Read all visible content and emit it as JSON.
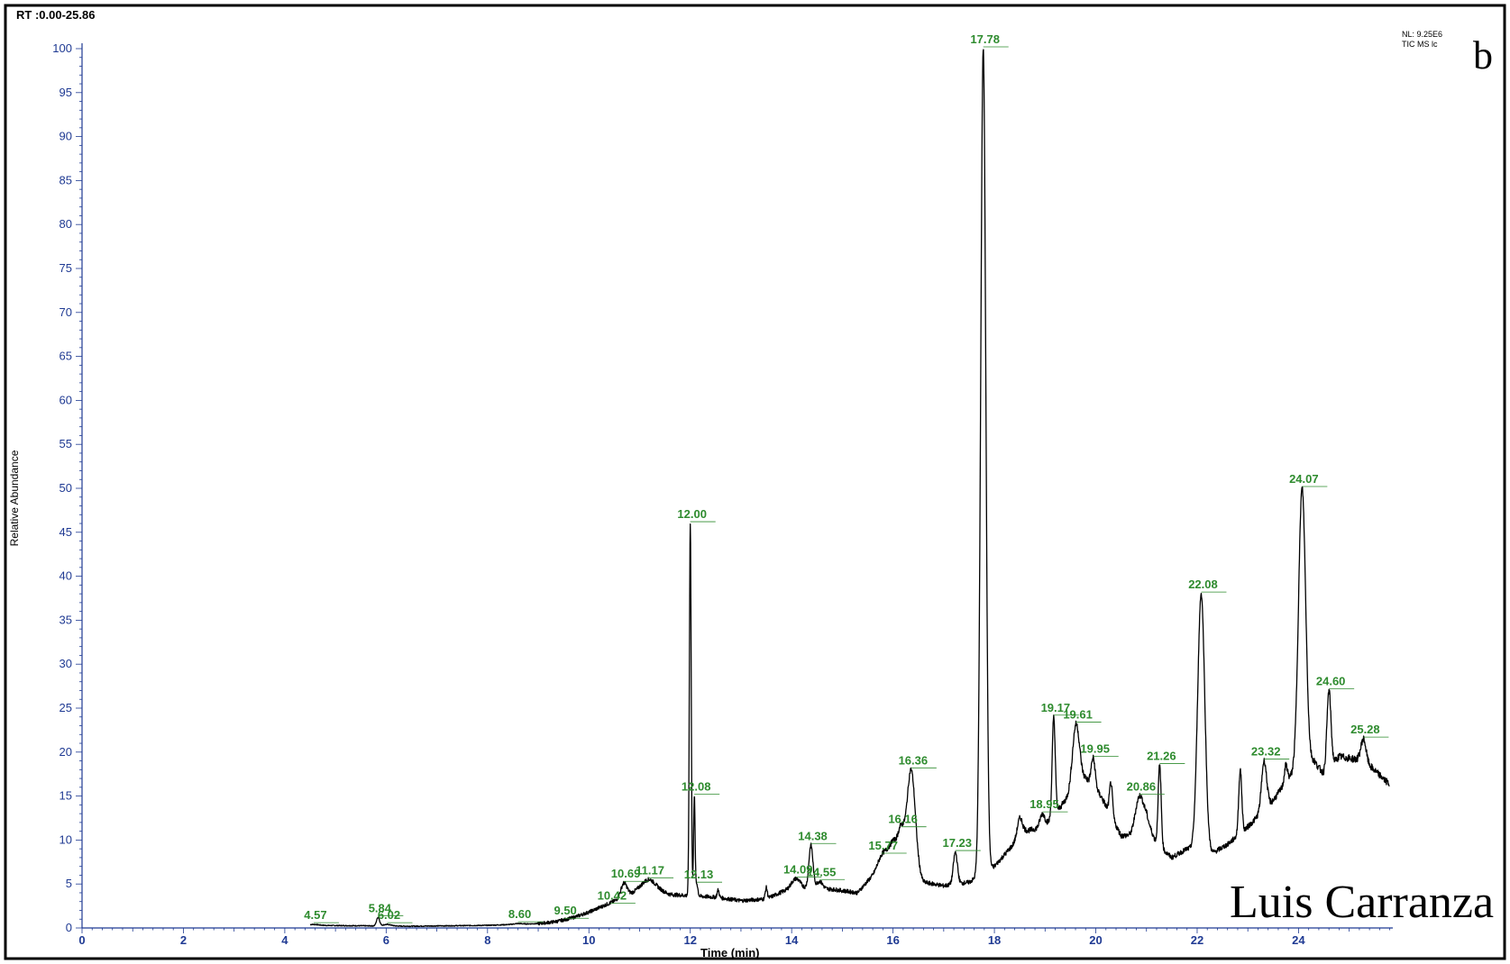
{
  "header": {
    "range": "RT :0.00-25.86",
    "nl": "NL: 9.25E6",
    "scan": "TIC  MS  lc",
    "panel_letter": "b",
    "author": "Luis Carranza"
  },
  "colors": {
    "trace": "#000000",
    "peak_label": "#2e8b2e",
    "axis": "#1f3a93",
    "border": "#000000"
  },
  "chart_data": {
    "type": "line",
    "xlabel": "Time (min)",
    "ylabel": "Relative Abundance",
    "xlim": [
      0,
      25.86
    ],
    "ylim": [
      0,
      100
    ],
    "x_ticks": [
      0,
      2,
      4,
      6,
      8,
      10,
      12,
      14,
      16,
      18,
      20,
      22,
      24
    ],
    "y_ticks": [
      0,
      5,
      10,
      15,
      20,
      25,
      30,
      35,
      40,
      45,
      50,
      55,
      60,
      65,
      70,
      75,
      80,
      85,
      90,
      95,
      100
    ],
    "trace_start": 4.5,
    "trace_end": 25.8,
    "baseline": [
      [
        4.5,
        0.3
      ],
      [
        6.5,
        0.2
      ],
      [
        8.0,
        0.3
      ],
      [
        9.0,
        0.5
      ],
      [
        9.5,
        0.8
      ],
      [
        10.0,
        1.8
      ],
      [
        10.4,
        2.8
      ],
      [
        10.8,
        3.8
      ],
      [
        11.2,
        4.6
      ],
      [
        11.6,
        3.8
      ],
      [
        12.5,
        3.5
      ],
      [
        13.0,
        3.1
      ],
      [
        13.5,
        3.3
      ],
      [
        14.0,
        4.6
      ],
      [
        14.8,
        4.4
      ],
      [
        15.3,
        4.0
      ],
      [
        15.6,
        6.0
      ],
      [
        16.0,
        10.0
      ],
      [
        16.6,
        5.2
      ],
      [
        17.0,
        4.8
      ],
      [
        17.5,
        5.2
      ],
      [
        18.0,
        7.0
      ],
      [
        18.3,
        9.0
      ],
      [
        18.6,
        11.0
      ],
      [
        19.0,
        11.5
      ],
      [
        19.4,
        14.5
      ],
      [
        19.8,
        17.0
      ],
      [
        20.1,
        15.0
      ],
      [
        20.5,
        10.5
      ],
      [
        20.7,
        10.5
      ],
      [
        21.0,
        12.5
      ],
      [
        21.2,
        9.5
      ],
      [
        21.5,
        8.0
      ],
      [
        21.8,
        9.0
      ],
      [
        22.3,
        8.5
      ],
      [
        22.6,
        9.5
      ],
      [
        23.0,
        11.5
      ],
      [
        23.5,
        14.5
      ],
      [
        23.8,
        17.0
      ],
      [
        24.3,
        19.0
      ],
      [
        24.5,
        17.5
      ],
      [
        24.8,
        19.5
      ],
      [
        25.3,
        19.0
      ],
      [
        25.8,
        16.3
      ]
    ],
    "peaks": [
      {
        "label": "4.57",
        "x": 4.57,
        "y": 0.4,
        "w": 0.1
      },
      {
        "label": "5.84",
        "x": 5.84,
        "y": 1.2,
        "w": 0.03
      },
      {
        "label": "6.02",
        "x": 6.02,
        "y": 0.4,
        "w": 0.08
      },
      {
        "label": "8.60",
        "x": 8.6,
        "y": 0.5,
        "w": 0.08
      },
      {
        "label": "9.50",
        "x": 9.5,
        "y": 0.9,
        "w": 0.08
      },
      {
        "label": "10.42",
        "x": 10.42,
        "y": 2.6,
        "w": 0.08
      },
      {
        "label": "10.69",
        "x": 10.69,
        "y": 5.1,
        "w": 0.06
      },
      {
        "label": "11.17",
        "x": 11.17,
        "y": 5.5,
        "w": 0.15
      },
      {
        "label": "12.00",
        "x": 12.0,
        "y": 46.0,
        "w": 0.018
      },
      {
        "label": "12.08",
        "x": 12.08,
        "y": 15.0,
        "w": 0.015
      },
      {
        "label": "12.13",
        "x": 12.13,
        "y": 5.0,
        "w": 0.02
      },
      {
        "label": "14.09",
        "x": 14.09,
        "y": 5.6,
        "w": 0.08
      },
      {
        "label": "14.38",
        "x": 14.38,
        "y": 9.4,
        "w": 0.04
      },
      {
        "label": "14.55",
        "x": 14.55,
        "y": 5.3,
        "w": 0.06
      },
      {
        "label": "15.77",
        "x": 15.77,
        "y": 8.3,
        "w": 0.07
      },
      {
        "label": "16.16",
        "x": 16.16,
        "y": 11.3,
        "w": 0.06
      },
      {
        "label": "16.36",
        "x": 16.36,
        "y": 18.0,
        "w": 0.08
      },
      {
        "label": "17.23",
        "x": 17.23,
        "y": 8.6,
        "w": 0.04
      },
      {
        "label": "17.78",
        "x": 17.78,
        "y": 100,
        "w": 0.05
      },
      {
        "label": "18.95",
        "x": 18.95,
        "y": 13.0,
        "w": 0.05
      },
      {
        "label": "19.17",
        "x": 19.17,
        "y": 24.0,
        "w": 0.03
      },
      {
        "label": "19.61",
        "x": 19.61,
        "y": 23.2,
        "w": 0.07
      },
      {
        "label": "19.95",
        "x": 19.95,
        "y": 19.3,
        "w": 0.04
      },
      {
        "label": "20.86",
        "x": 20.86,
        "y": 15.0,
        "w": 0.08
      },
      {
        "label": "21.26",
        "x": 21.26,
        "y": 18.5,
        "w": 0.03
      },
      {
        "label": "22.08",
        "x": 22.08,
        "y": 38.0,
        "w": 0.07
      },
      {
        "label": "23.32",
        "x": 23.32,
        "y": 19.0,
        "w": 0.05
      },
      {
        "label": "24.07",
        "x": 24.07,
        "y": 50.0,
        "w": 0.07
      },
      {
        "label": "24.60",
        "x": 24.6,
        "y": 27.0,
        "w": 0.04
      },
      {
        "label": "25.28",
        "x": 25.28,
        "y": 21.5,
        "w": 0.05
      }
    ],
    "unlabeled_peaks": [
      {
        "x": 20.3,
        "y": 16.5,
        "w": 0.03
      },
      {
        "x": 22.85,
        "y": 18.0,
        "w": 0.03
      },
      {
        "x": 23.75,
        "y": 18.5,
        "w": 0.03
      },
      {
        "x": 13.5,
        "y": 4.6,
        "w": 0.02
      },
      {
        "x": 12.55,
        "y": 4.3,
        "w": 0.02
      },
      {
        "x": 18.5,
        "y": 12.5,
        "w": 0.05
      }
    ]
  }
}
